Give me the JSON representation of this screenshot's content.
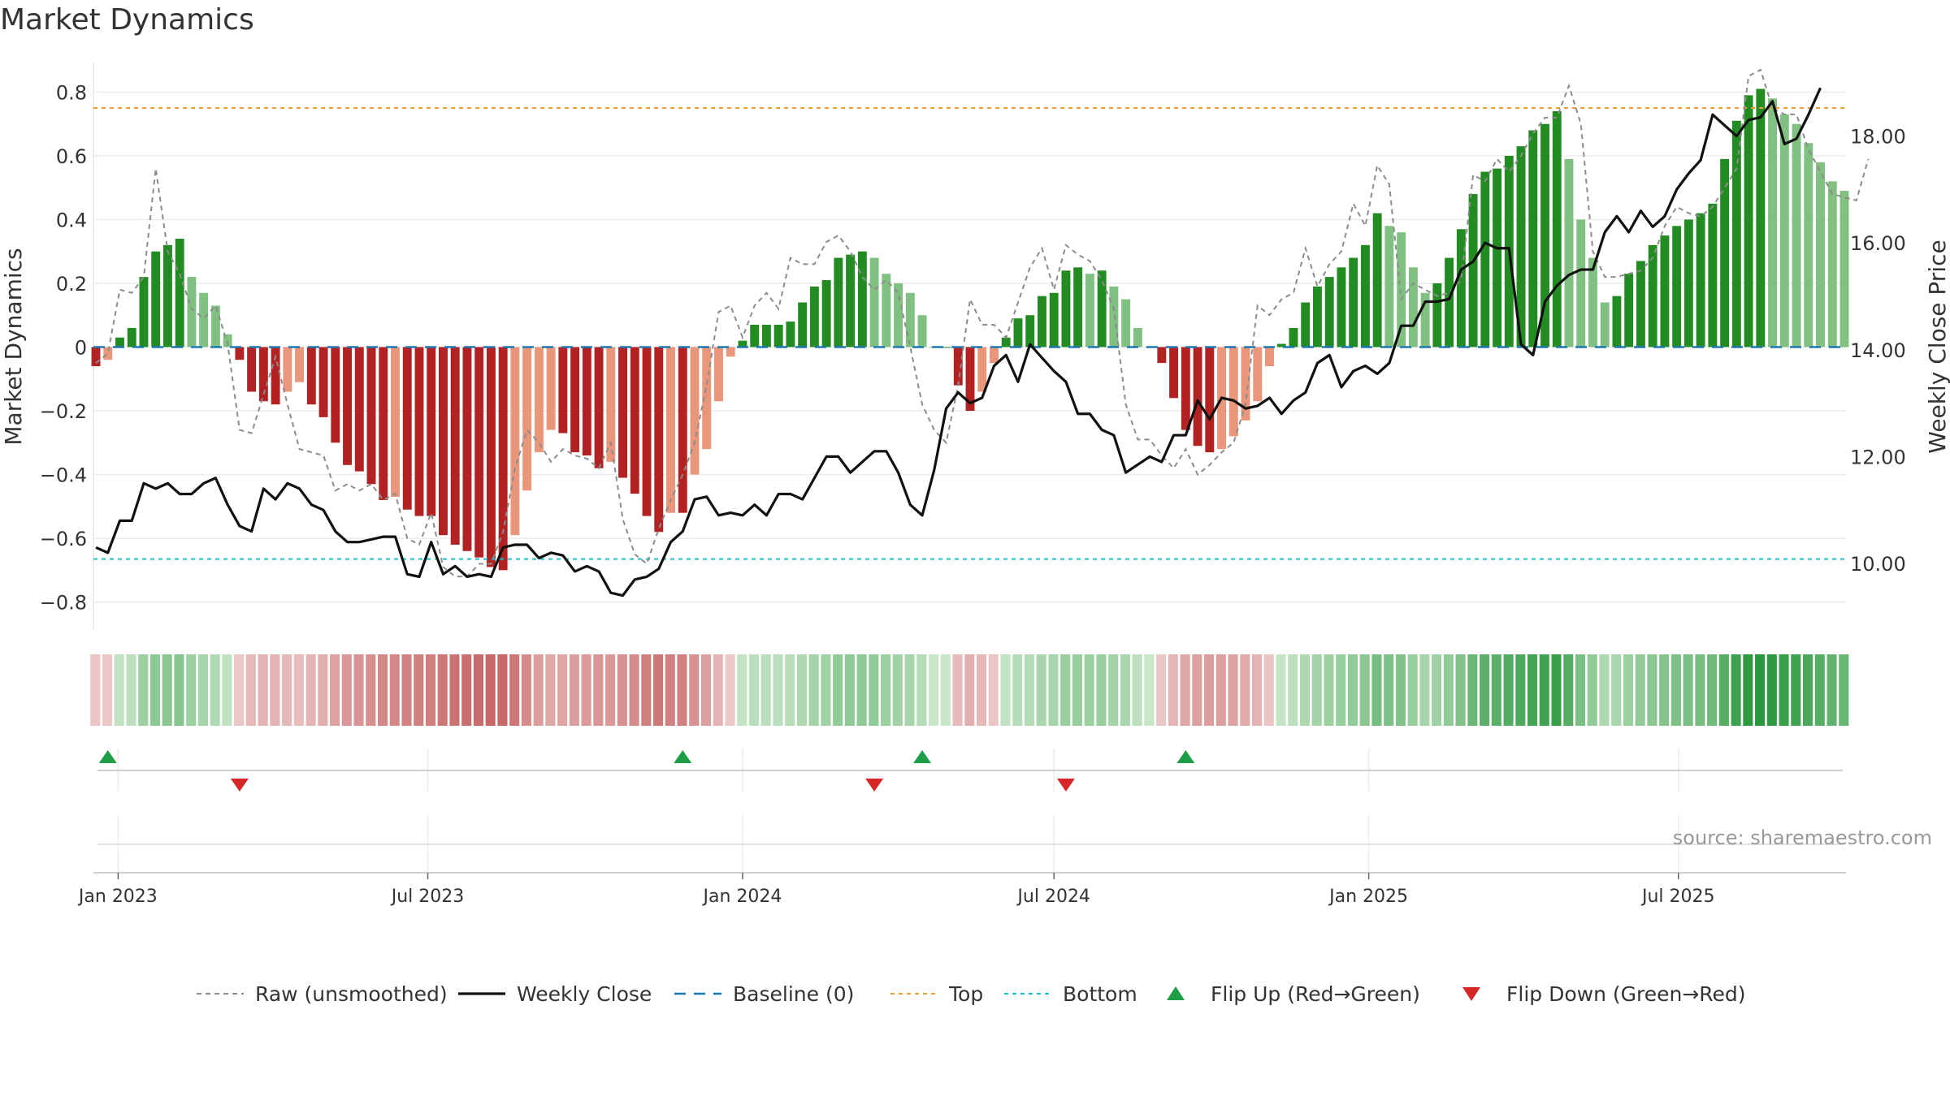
{
  "title": "Market Dynamics",
  "source": "source: sharemaestro.com",
  "chart_data": {
    "type": "bar",
    "start_date": "2022-12-19",
    "interval": "weekly",
    "ylabel": "Market Dynamics",
    "ylabel_right": "Weekly Close Price",
    "ylim": [
      -0.88,
      0.88
    ],
    "ylim_right": [
      8.8,
      19.3
    ],
    "yticks": [
      {
        "value": -0.8,
        "label": "−0.8"
      },
      {
        "value": -0.6,
        "label": "−0.6"
      },
      {
        "value": -0.4,
        "label": "−0.4"
      },
      {
        "value": -0.2,
        "label": "−0.2"
      },
      {
        "value": 0,
        "label": "0"
      },
      {
        "value": 0.2,
        "label": "0.2"
      },
      {
        "value": 0.4,
        "label": "0.4"
      },
      {
        "value": 0.6,
        "label": "0.6"
      },
      {
        "value": 0.8,
        "label": "0.8"
      }
    ],
    "yticks_right": [
      {
        "value": 10,
        "label": "10.00"
      },
      {
        "value": 12,
        "label": "12.00"
      },
      {
        "value": 14,
        "label": "14.00"
      },
      {
        "value": 16,
        "label": "16.00"
      },
      {
        "value": 18,
        "label": "18.00"
      }
    ],
    "xticks": [
      {
        "date": "2023-01-01",
        "label": "Jan 2023"
      },
      {
        "date": "2023-07-01",
        "label": "Jul 2023"
      },
      {
        "date": "2024-01-01",
        "label": "Jan 2024"
      },
      {
        "date": "2024-07-01",
        "label": "Jul 2024"
      },
      {
        "date": "2025-01-01",
        "label": "Jan 2025"
      },
      {
        "date": "2025-07-01",
        "label": "Jul 2025"
      }
    ],
    "top_level": 0.75,
    "bottom_level": -0.665,
    "colors": {
      "strong_green": "#228b22",
      "light_green": "#80c080",
      "strong_red": "#b22222",
      "light_red": "#e9967a",
      "raw": "#8c8c8c",
      "close": "#111111",
      "baseline": "#1f77b4",
      "top": "#ee9933",
      "bottom": "#17becf",
      "flip_up": "#1e9e46",
      "flip_down": "#d62728"
    },
    "series": [
      {
        "name": "Market Dynamics",
        "values": [
          -0.06,
          -0.04,
          0.03,
          0.06,
          0.22,
          0.3,
          0.32,
          0.34,
          0.22,
          0.17,
          0.13,
          0.04,
          -0.04,
          -0.14,
          -0.17,
          -0.18,
          -0.14,
          -0.11,
          -0.18,
          -0.22,
          -0.3,
          -0.37,
          -0.39,
          -0.43,
          -0.48,
          -0.47,
          -0.51,
          -0.53,
          -0.53,
          -0.59,
          -0.62,
          -0.64,
          -0.66,
          -0.69,
          -0.7,
          -0.59,
          -0.45,
          -0.33,
          -0.26,
          -0.27,
          -0.33,
          -0.34,
          -0.38,
          -0.36,
          -0.41,
          -0.46,
          -0.53,
          -0.58,
          -0.52,
          -0.52,
          -0.4,
          -0.32,
          -0.17,
          -0.03,
          0.02,
          0.07,
          0.07,
          0.07,
          0.08,
          0.14,
          0.19,
          0.21,
          0.28,
          0.29,
          0.3,
          0.28,
          0.23,
          0.2,
          0.17,
          0.1,
          0.0,
          0.0,
          -0.12,
          -0.2,
          -0.14,
          -0.05,
          0.03,
          0.09,
          0.1,
          0.16,
          0.17,
          0.24,
          0.25,
          0.23,
          0.24,
          0.19,
          0.15,
          0.06,
          0.0,
          -0.05,
          -0.16,
          -0.26,
          -0.31,
          -0.33,
          -0.32,
          -0.28,
          -0.23,
          -0.17,
          -0.06,
          0.01,
          0.06,
          0.14,
          0.19,
          0.22,
          0.25,
          0.28,
          0.32,
          0.42,
          0.38,
          0.36,
          0.25,
          0.17,
          0.2,
          0.28,
          0.37,
          0.48,
          0.55,
          0.56,
          0.6,
          0.63,
          0.68,
          0.7,
          0.74,
          0.59,
          0.4,
          0.28,
          0.14,
          0.16,
          0.23,
          0.27,
          0.32,
          0.35,
          0.38,
          0.4,
          0.42,
          0.45,
          0.59,
          0.71,
          0.79,
          0.81,
          0.78,
          0.73,
          0.7,
          0.64,
          0.58,
          0.52,
          0.49
        ]
      },
      {
        "name": "Raw (unsmoothed)",
        "values": [
          -0.05,
          -0.02,
          0.18,
          0.17,
          0.22,
          0.56,
          0.3,
          0.23,
          0.12,
          0.09,
          0.13,
          0.01,
          -0.26,
          -0.27,
          -0.15,
          -0.03,
          -0.18,
          -0.32,
          -0.33,
          -0.34,
          -0.45,
          -0.43,
          -0.45,
          -0.43,
          -0.48,
          -0.46,
          -0.6,
          -0.62,
          -0.52,
          -0.69,
          -0.72,
          -0.72,
          -0.68,
          -0.68,
          -0.58,
          -0.38,
          -0.26,
          -0.3,
          -0.36,
          -0.32,
          -0.34,
          -0.35,
          -0.38,
          -0.3,
          -0.54,
          -0.65,
          -0.68,
          -0.57,
          -0.48,
          -0.4,
          -0.3,
          -0.12,
          0.11,
          0.13,
          0.03,
          0.13,
          0.17,
          0.12,
          0.28,
          0.26,
          0.26,
          0.33,
          0.35,
          0.3,
          0.22,
          0.18,
          0.21,
          0.17,
          0.0,
          -0.18,
          -0.26,
          -0.3,
          -0.12,
          0.15,
          0.07,
          0.07,
          0.03,
          0.14,
          0.25,
          0.31,
          0.18,
          0.32,
          0.29,
          0.27,
          0.21,
          0.12,
          -0.18,
          -0.29,
          -0.29,
          -0.34,
          -0.38,
          -0.32,
          -0.4,
          -0.37,
          -0.33,
          -0.3,
          -0.18,
          0.13,
          0.1,
          0.15,
          0.17,
          0.31,
          0.19,
          0.26,
          0.3,
          0.45,
          0.38,
          0.57,
          0.51,
          0.15,
          0.2,
          0.18,
          0.16,
          0.17,
          0.21,
          0.54,
          0.52,
          0.59,
          0.55,
          0.6,
          0.67,
          0.72,
          0.72,
          0.82,
          0.7,
          0.3,
          0.22,
          0.22,
          0.23,
          0.24,
          0.28,
          0.38,
          0.44,
          0.42,
          0.41,
          0.44,
          0.5,
          0.56,
          0.85,
          0.87,
          0.75,
          0.73,
          0.73,
          0.62,
          0.55,
          0.48,
          0.47,
          0.46,
          0.59
        ]
      },
      {
        "name": "Weekly Close",
        "axis": "right",
        "values": [
          10.3,
          10.2,
          10.8,
          10.8,
          11.5,
          11.4,
          11.5,
          11.3,
          11.3,
          11.5,
          11.6,
          11.1,
          10.7,
          10.6,
          11.4,
          11.2,
          11.5,
          11.4,
          11.1,
          11.0,
          10.6,
          10.4,
          10.4,
          10.45,
          10.5,
          10.5,
          9.8,
          9.75,
          10.4,
          9.8,
          9.95,
          9.75,
          9.8,
          9.75,
          10.3,
          10.35,
          10.35,
          10.1,
          10.2,
          10.15,
          9.85,
          9.95,
          9.85,
          9.45,
          9.4,
          9.7,
          9.75,
          9.9,
          10.4,
          10.6,
          11.2,
          11.25,
          10.9,
          10.95,
          10.9,
          11.1,
          10.9,
          11.3,
          11.3,
          11.2,
          11.6,
          12.0,
          12.0,
          11.7,
          11.9,
          12.1,
          12.1,
          11.7,
          11.1,
          10.9,
          11.75,
          12.9,
          13.2,
          13.0,
          13.1,
          13.7,
          13.9,
          13.4,
          14.1,
          13.85,
          13.6,
          13.4,
          12.8,
          12.8,
          12.5,
          12.4,
          11.7,
          11.85,
          12.0,
          11.9,
          12.4,
          12.4,
          13.05,
          12.7,
          13.1,
          13.05,
          12.9,
          12.95,
          13.1,
          12.8,
          13.05,
          13.2,
          13.75,
          13.9,
          13.3,
          13.6,
          13.7,
          13.55,
          13.75,
          14.45,
          14.45,
          14.9,
          14.9,
          14.95,
          15.5,
          15.65,
          16.0,
          15.9,
          15.9,
          14.1,
          13.9,
          14.9,
          15.2,
          15.4,
          15.5,
          15.5,
          16.2,
          16.5,
          16.2,
          16.6,
          16.3,
          16.5,
          17.0,
          17.3,
          17.55,
          18.4,
          18.2,
          18.0,
          18.3,
          18.35,
          18.65,
          17.85,
          17.95,
          18.4,
          18.9
        ]
      }
    ],
    "flips_up": [
      1,
      49,
      69,
      91
    ],
    "flips_down": [
      12,
      65,
      81
    ],
    "legend": [
      {
        "label": "Raw (unsmoothed)",
        "style": "raw"
      },
      {
        "label": "Weekly Close",
        "style": "close"
      },
      {
        "label": "Baseline (0)",
        "style": "baseline"
      },
      {
        "label": "Top",
        "style": "top"
      },
      {
        "label": "Bottom",
        "style": "bottom"
      },
      {
        "label": "Flip Up (Red→Green)",
        "style": "up"
      },
      {
        "label": "Flip Down (Green→Red)",
        "style": "down"
      }
    ],
    "legend_position": "bottom"
  }
}
